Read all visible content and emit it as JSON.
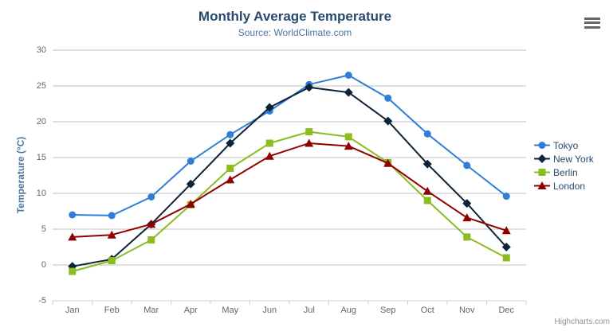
{
  "chart_data": {
    "type": "line",
    "title": "Monthly Average Temperature",
    "subtitle": "Source: WorldClimate.com",
    "xlabel": "",
    "ylabel": "Temperature (°C)",
    "categories": [
      "Jan",
      "Feb",
      "Mar",
      "Apr",
      "May",
      "Jun",
      "Jul",
      "Aug",
      "Sep",
      "Oct",
      "Nov",
      "Dec"
    ],
    "ylim": [
      -5,
      30
    ],
    "yticks": [
      -5,
      0,
      5,
      10,
      15,
      20,
      25,
      30
    ],
    "grid": true,
    "legend_position": "right",
    "series": [
      {
        "name": "Tokyo",
        "color": "#2f7ed8",
        "marker": "circle",
        "values": [
          7.0,
          6.9,
          9.5,
          14.5,
          18.2,
          21.5,
          25.2,
          26.5,
          23.3,
          18.3,
          13.9,
          9.6
        ]
      },
      {
        "name": "New York",
        "color": "#0d233a",
        "marker": "diamond",
        "values": [
          -0.2,
          0.8,
          5.7,
          11.3,
          17.0,
          22.0,
          24.8,
          24.1,
          20.1,
          14.1,
          8.6,
          2.5
        ]
      },
      {
        "name": "Berlin",
        "color": "#8bbc21",
        "marker": "square",
        "values": [
          -0.9,
          0.6,
          3.5,
          8.4,
          13.5,
          17.0,
          18.6,
          17.9,
          14.3,
          9.0,
          3.9,
          1.0
        ]
      },
      {
        "name": "London",
        "color": "#910000",
        "marker": "triangle",
        "values": [
          3.9,
          4.2,
          5.7,
          8.5,
          11.9,
          15.2,
          17.0,
          16.6,
          14.2,
          10.3,
          6.6,
          4.8
        ]
      }
    ]
  },
  "credits": "Highcharts.com",
  "export_menu": {
    "icon": "hamburger-icon"
  },
  "colors": {
    "title": "#274b6d",
    "subtitle": "#4d759e",
    "axis_title": "#4d759e",
    "axis_label": "#666666",
    "grid": "#c0c0c0",
    "axis_line": "#c0d0e0",
    "legend_text": "#274b6d",
    "credits": "#909090",
    "menu_icon": "#666666"
  }
}
